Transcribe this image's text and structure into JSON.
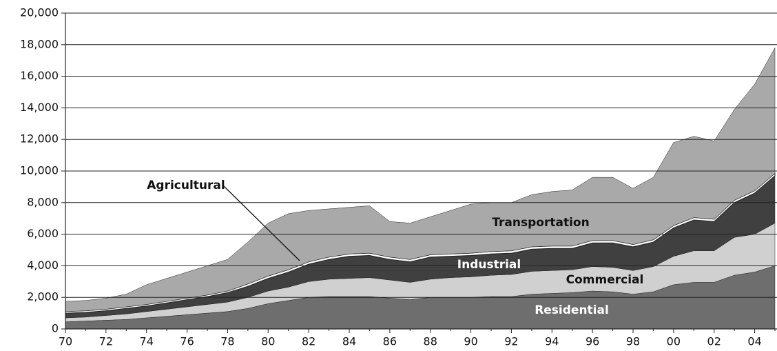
{
  "chart_data": {
    "type": "stacked-area",
    "categories": [
      "70",
      null,
      "72",
      null,
      "74",
      null,
      "76",
      null,
      "78",
      null,
      "80",
      null,
      "82",
      null,
      "84",
      null,
      "86",
      null,
      "88",
      null,
      "90",
      null,
      "92",
      null,
      "94",
      null,
      "96",
      null,
      "98",
      null,
      "00",
      null,
      "02",
      null,
      "04",
      null
    ],
    "series": [
      {
        "name": "Residential",
        "color": "#6e6e6e",
        "values": [
          450,
          500,
          550,
          600,
          700,
          800,
          900,
          1000,
          1100,
          1300,
          1600,
          1800,
          2000,
          2050,
          2050,
          2050,
          1950,
          1850,
          2000,
          2000,
          2000,
          2050,
          2050,
          2200,
          2250,
          2300,
          2400,
          2350,
          2200,
          2350,
          2800,
          2950,
          2950,
          3400,
          3600,
          4000
        ]
      },
      {
        "name": "Commercial",
        "color": "#d0d0d0",
        "values": [
          250,
          250,
          300,
          350,
          400,
          450,
          500,
          550,
          600,
          700,
          800,
          850,
          1000,
          1100,
          1150,
          1200,
          1150,
          1100,
          1150,
          1250,
          1300,
          1350,
          1400,
          1450,
          1450,
          1450,
          1550,
          1550,
          1500,
          1600,
          1800,
          2000,
          2000,
          2400,
          2400,
          2700
        ]
      },
      {
        "name": "Industrial",
        "color": "#404040",
        "values": [
          300,
          300,
          300,
          350,
          350,
          400,
          450,
          500,
          600,
          700,
          800,
          950,
          1100,
          1250,
          1400,
          1400,
          1300,
          1300,
          1400,
          1350,
          1350,
          1350,
          1350,
          1400,
          1400,
          1350,
          1500,
          1550,
          1500,
          1550,
          1800,
          1950,
          1850,
          2200,
          2600,
          3000
        ]
      },
      {
        "name": "Agricultural",
        "color": "#ffffff",
        "values": [
          100,
          100,
          100,
          100,
          100,
          100,
          100,
          100,
          100,
          150,
          150,
          150,
          150,
          150,
          150,
          150,
          150,
          150,
          150,
          150,
          150,
          150,
          150,
          150,
          150,
          150,
          150,
          150,
          150,
          150,
          150,
          150,
          150,
          150,
          150,
          150
        ]
      },
      {
        "name": "Transportation",
        "color": "#a9a9a9",
        "values": [
          650,
          650,
          700,
          800,
          1250,
          1450,
          1650,
          1850,
          2000,
          2650,
          3350,
          3550,
          3250,
          3050,
          2950,
          3000,
          2250,
          2300,
          2400,
          2750,
          3100,
          3100,
          3050,
          3300,
          3450,
          3550,
          4000,
          4000,
          3550,
          3950,
          5250,
          5150,
          4950,
          5750,
          6750,
          7950
        ]
      }
    ],
    "ylim": [
      0,
      20000
    ],
    "yticks": [
      0,
      {
        "value": 2000,
        "label": "2,000"
      },
      {
        "value": 4000,
        "label": "4,000"
      },
      {
        "value": 6000,
        "label": "6,000"
      },
      {
        "value": 8000,
        "label": "8,000"
      },
      {
        "value": 10000,
        "label": "10,000"
      },
      {
        "value": 12000,
        "label": "12,000"
      },
      {
        "value": 14000,
        "label": "14,000"
      },
      {
        "value": 16000,
        "label": "16,000"
      },
      {
        "value": 18000,
        "label": "18,000"
      },
      {
        "value": 20000,
        "label": "20,000"
      }
    ],
    "grid": true
  }
}
